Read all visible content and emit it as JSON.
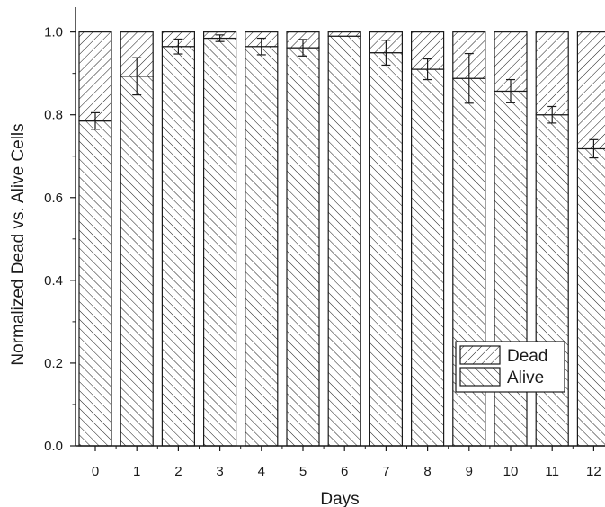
{
  "chart_data": {
    "type": "bar",
    "stacked": true,
    "categories": [
      "0",
      "1",
      "2",
      "3",
      "4",
      "5",
      "6",
      "7",
      "8",
      "9",
      "10",
      "11",
      "12"
    ],
    "series": [
      {
        "name": "Alive",
        "values": [
          0.785,
          0.893,
          0.965,
          0.985,
          0.965,
          0.962,
          0.99,
          0.95,
          0.91,
          0.888,
          0.857,
          0.8,
          0.718
        ],
        "error": [
          0.02,
          0.045,
          0.018,
          0.008,
          0.02,
          0.02,
          0.0,
          0.03,
          0.025,
          0.06,
          0.028,
          0.02,
          0.022
        ]
      },
      {
        "name": "Dead",
        "values": [
          0.215,
          0.107,
          0.035,
          0.015,
          0.035,
          0.038,
          0.01,
          0.05,
          0.09,
          0.112,
          0.143,
          0.2,
          0.282
        ]
      }
    ],
    "xlabel": "Days",
    "ylabel": "Normalized Dead vs. Alive Cells",
    "ylim": [
      0,
      1.06
    ],
    "yticks": [
      "0.0",
      "0.2",
      "0.4",
      "0.6",
      "0.8",
      "1.0"
    ],
    "grid": false,
    "legend": {
      "placement": "bottom-right",
      "entries": [
        "Dead",
        "Alive"
      ]
    },
    "colors": {
      "fill": "#ffffff",
      "stroke": "#1a1a1a"
    },
    "patterns": {
      "Dead": "back-diagonal-hatch",
      "Alive": "forward-diagonal-hatch"
    }
  }
}
